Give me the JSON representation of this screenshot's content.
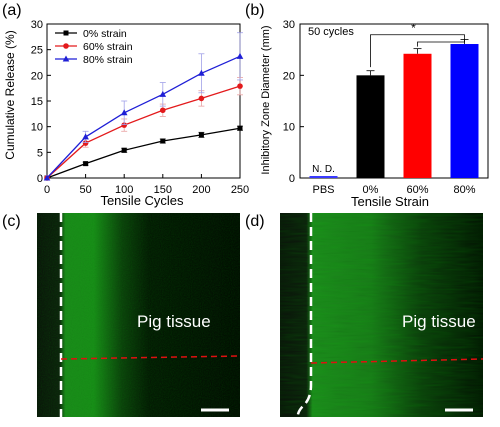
{
  "panels": {
    "a": "(a)",
    "b": "(b)",
    "c": "(c)",
    "d": "(d)"
  },
  "chart_data": [
    {
      "type": "line",
      "ylabel": "Cumulative Release (%)",
      "xlabel": "Tensile Cycles",
      "xlim": [
        0,
        250
      ],
      "ylim": [
        0,
        30
      ],
      "xticks": [
        0,
        50,
        100,
        150,
        200,
        250
      ],
      "yticks": [
        0,
        5,
        10,
        15,
        20,
        25,
        30
      ],
      "x": [
        0,
        50,
        100,
        150,
        200,
        250
      ],
      "legend_position": "top-left",
      "series": [
        {
          "name": "0% strain",
          "color": "#000000",
          "marker": "square",
          "values": [
            0,
            2.8,
            5.4,
            7.2,
            8.4,
            9.7
          ],
          "errors": [
            0,
            0.3,
            0.4,
            0.4,
            0.5,
            0.4
          ]
        },
        {
          "name": "60% strain",
          "color": "#e31a1c",
          "marker": "circle",
          "values": [
            0,
            6.8,
            10.3,
            13.2,
            15.5,
            17.9
          ],
          "errors": [
            0,
            0.8,
            1.2,
            1.2,
            1.5,
            1.7
          ]
        },
        {
          "name": "80% strain",
          "color": "#1f1fd6",
          "marker": "triangle",
          "values": [
            0,
            8.0,
            12.7,
            16.3,
            20.4,
            23.7
          ],
          "errors": [
            0,
            1.1,
            2.3,
            2.3,
            3.8,
            4.6
          ]
        }
      ]
    },
    {
      "type": "bar",
      "ylabel": "Inhibitory Zone Diameter (mm)",
      "xlabel": "Tensile Strain",
      "ylim": [
        0,
        30
      ],
      "yticks": [
        0,
        10,
        20,
        30
      ],
      "annotation": "50 cycles",
      "nd_label": "N. D.",
      "significance": "*",
      "categories": [
        "PBS",
        "0%",
        "60%",
        "80%"
      ],
      "values": [
        0,
        20.0,
        24.2,
        26.1
      ],
      "errors": [
        0,
        0.9,
        1.0,
        0.9
      ],
      "colors": [
        "#000000",
        "#000000",
        "#ff0000",
        "#0000ff"
      ]
    }
  ],
  "images": {
    "c": {
      "label": "Pig tissue"
    },
    "d": {
      "label": "Pig tissue"
    }
  }
}
